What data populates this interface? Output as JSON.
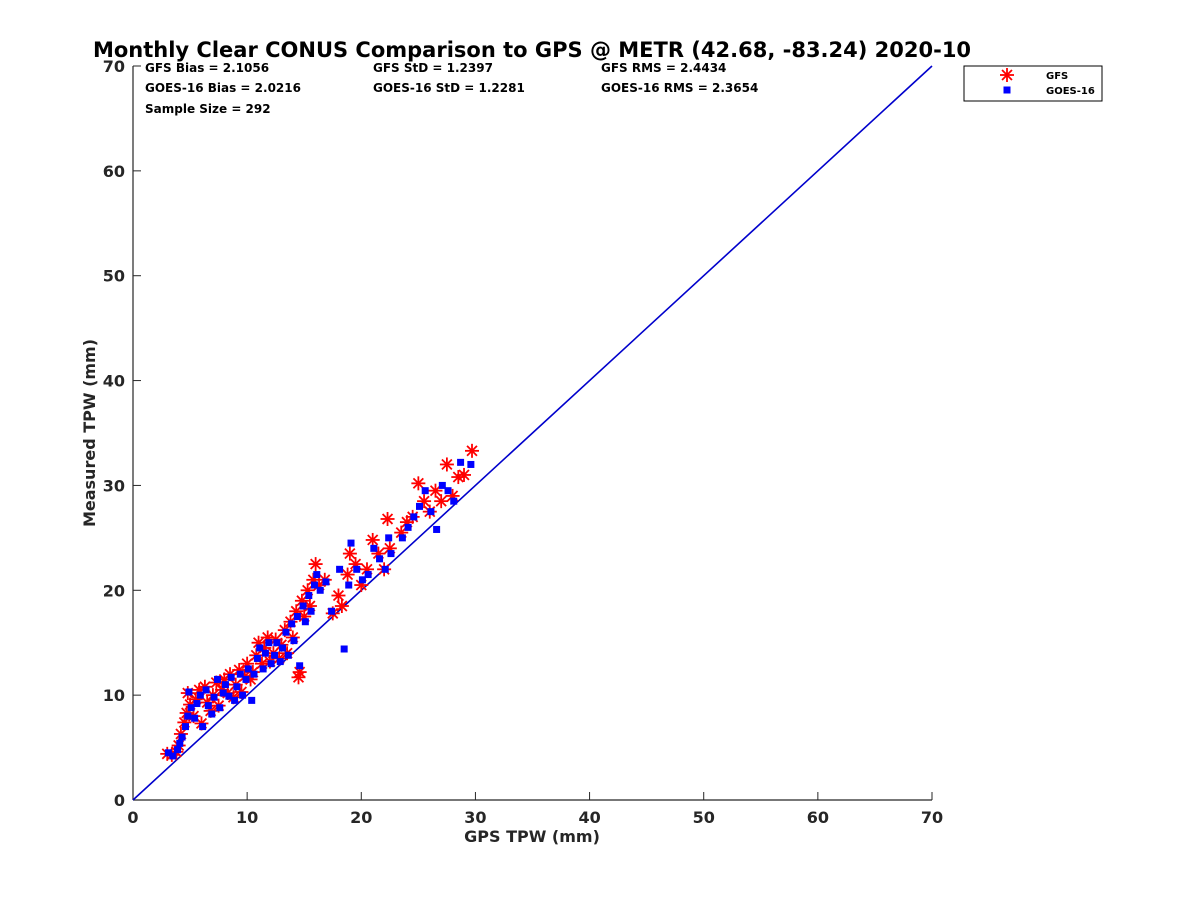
{
  "chart_data": {
    "type": "scatter",
    "title": "Monthly Clear CONUS Comparison to GPS @ METR (42.68, -83.24) 2020-10",
    "xlabel": "GPS TPW (mm)",
    "ylabel": "Measured TPW (mm)",
    "xlim": [
      0,
      70
    ],
    "ylim": [
      0,
      70
    ],
    "xticks": [
      "0",
      "10",
      "20",
      "30",
      "40",
      "50",
      "60",
      "70"
    ],
    "yticks": [
      "0",
      "10",
      "20",
      "30",
      "40",
      "50",
      "60",
      "70"
    ],
    "grid": false,
    "legend_position": "top-right",
    "stats": [
      "GFS Bias = 2.1056",
      "GFS StD = 1.2397",
      "GFS RMS = 2.4434",
      "GOES-16 Bias = 2.0216",
      "GOES-16 StD = 1.2281",
      "GOES-16 RMS = 2.3654",
      "Sample Size = 292"
    ],
    "reference_line": {
      "x": [
        0,
        70
      ],
      "y": [
        0,
        70
      ],
      "color": "#0000cc"
    },
    "series": [
      {
        "name": "GFS",
        "marker": "asterisk",
        "color": "#ff0000",
        "points": [
          [
            3.0,
            4.4
          ],
          [
            3.4,
            4.3
          ],
          [
            3.8,
            4.6
          ],
          [
            4.0,
            5.2
          ],
          [
            4.2,
            6.3
          ],
          [
            4.5,
            7.4
          ],
          [
            4.7,
            8.3
          ],
          [
            4.8,
            10.2
          ],
          [
            5.0,
            9.1
          ],
          [
            5.3,
            8.0
          ],
          [
            5.5,
            9.6
          ],
          [
            5.8,
            10.5
          ],
          [
            6.0,
            7.3
          ],
          [
            6.3,
            10.8
          ],
          [
            6.5,
            9.3
          ],
          [
            6.8,
            8.5
          ],
          [
            7.0,
            10.0
          ],
          [
            7.3,
            11.2
          ],
          [
            7.5,
            9.0
          ],
          [
            7.8,
            10.5
          ],
          [
            8.0,
            11.5
          ],
          [
            8.3,
            10.2
          ],
          [
            8.5,
            12.0
          ],
          [
            8.8,
            9.8
          ],
          [
            9.0,
            11.0
          ],
          [
            9.3,
            12.4
          ],
          [
            9.5,
            10.3
          ],
          [
            9.8,
            11.8
          ],
          [
            10.0,
            13.0
          ],
          [
            10.3,
            11.5
          ],
          [
            10.5,
            12.2
          ],
          [
            10.8,
            13.8
          ],
          [
            11.0,
            15.0
          ],
          [
            11.3,
            13.0
          ],
          [
            11.5,
            14.5
          ],
          [
            11.8,
            15.5
          ],
          [
            12.0,
            13.2
          ],
          [
            12.3,
            14.0
          ],
          [
            12.5,
            15.3
          ],
          [
            12.8,
            13.5
          ],
          [
            13.0,
            14.8
          ],
          [
            13.3,
            16.2
          ],
          [
            13.5,
            14.0
          ],
          [
            13.8,
            17.0
          ],
          [
            14.0,
            15.5
          ],
          [
            14.3,
            18.0
          ],
          [
            14.5,
            11.7
          ],
          [
            14.6,
            12.2
          ],
          [
            14.8,
            19.0
          ],
          [
            15.0,
            17.5
          ],
          [
            15.3,
            20.0
          ],
          [
            15.5,
            18.5
          ],
          [
            15.8,
            21.0
          ],
          [
            16.0,
            22.5
          ],
          [
            16.3,
            20.5
          ],
          [
            16.8,
            21.0
          ],
          [
            17.5,
            17.8
          ],
          [
            18.0,
            19.5
          ],
          [
            18.3,
            18.5
          ],
          [
            18.8,
            21.5
          ],
          [
            19.0,
            23.5
          ],
          [
            19.5,
            22.5
          ],
          [
            20.0,
            20.5
          ],
          [
            20.5,
            22.0
          ],
          [
            21.0,
            24.8
          ],
          [
            21.5,
            23.5
          ],
          [
            22.0,
            22.0
          ],
          [
            22.3,
            26.8
          ],
          [
            22.5,
            24.0
          ],
          [
            23.5,
            25.5
          ],
          [
            24.0,
            26.5
          ],
          [
            24.5,
            27.0
          ],
          [
            25.0,
            30.2
          ],
          [
            25.5,
            28.5
          ],
          [
            26.0,
            27.5
          ],
          [
            26.5,
            29.5
          ],
          [
            27.0,
            28.5
          ],
          [
            27.5,
            32.0
          ],
          [
            28.0,
            29.0
          ],
          [
            28.5,
            30.8
          ],
          [
            29.0,
            31.0
          ],
          [
            29.7,
            33.3
          ]
        ]
      },
      {
        "name": "GOES-16",
        "marker": "square",
        "color": "#0000ff",
        "points": [
          [
            3.1,
            4.5
          ],
          [
            3.5,
            4.2
          ],
          [
            3.9,
            4.8
          ],
          [
            4.1,
            5.4
          ],
          [
            4.3,
            6.0
          ],
          [
            4.6,
            7.0
          ],
          [
            4.8,
            8.0
          ],
          [
            4.9,
            10.3
          ],
          [
            5.1,
            8.8
          ],
          [
            5.4,
            7.8
          ],
          [
            5.6,
            9.2
          ],
          [
            5.9,
            10.0
          ],
          [
            6.1,
            7.0
          ],
          [
            6.4,
            10.5
          ],
          [
            6.6,
            9.0
          ],
          [
            6.9,
            8.2
          ],
          [
            7.1,
            9.8
          ],
          [
            7.4,
            11.5
          ],
          [
            7.6,
            8.8
          ],
          [
            7.9,
            10.2
          ],
          [
            8.1,
            11.0
          ],
          [
            8.4,
            9.9
          ],
          [
            8.6,
            11.7
          ],
          [
            8.9,
            9.5
          ],
          [
            9.1,
            10.8
          ],
          [
            9.4,
            12.0
          ],
          [
            9.6,
            10.0
          ],
          [
            9.9,
            11.5
          ],
          [
            10.1,
            12.5
          ],
          [
            10.4,
            9.5
          ],
          [
            10.6,
            12.0
          ],
          [
            10.9,
            13.5
          ],
          [
            11.1,
            14.5
          ],
          [
            11.4,
            12.5
          ],
          [
            11.6,
            14.0
          ],
          [
            11.9,
            15.0
          ],
          [
            12.1,
            13.0
          ],
          [
            12.4,
            13.8
          ],
          [
            12.6,
            15.0
          ],
          [
            12.9,
            13.2
          ],
          [
            13.1,
            14.5
          ],
          [
            13.4,
            16.0
          ],
          [
            13.6,
            13.8
          ],
          [
            13.9,
            16.8
          ],
          [
            14.1,
            15.2
          ],
          [
            14.4,
            17.5
          ],
          [
            14.6,
            12.8
          ],
          [
            14.9,
            18.5
          ],
          [
            15.1,
            17.0
          ],
          [
            15.4,
            19.5
          ],
          [
            15.6,
            18.0
          ],
          [
            15.9,
            20.5
          ],
          [
            16.1,
            21.5
          ],
          [
            16.4,
            20.0
          ],
          [
            16.9,
            20.8
          ],
          [
            17.4,
            18.0
          ],
          [
            18.1,
            22.0
          ],
          [
            18.5,
            14.4
          ],
          [
            18.9,
            20.5
          ],
          [
            19.1,
            24.5
          ],
          [
            19.6,
            22.0
          ],
          [
            20.1,
            21.0
          ],
          [
            20.6,
            21.5
          ],
          [
            21.1,
            24.0
          ],
          [
            21.6,
            23.0
          ],
          [
            22.1,
            22.0
          ],
          [
            22.4,
            25.0
          ],
          [
            22.6,
            23.5
          ],
          [
            23.6,
            25.0
          ],
          [
            24.1,
            26.0
          ],
          [
            24.6,
            27.0
          ],
          [
            25.1,
            28.0
          ],
          [
            25.6,
            29.5
          ],
          [
            26.1,
            27.5
          ],
          [
            26.6,
            25.8
          ],
          [
            27.1,
            30.0
          ],
          [
            27.6,
            29.5
          ],
          [
            28.1,
            28.5
          ],
          [
            28.7,
            32.2
          ],
          [
            29.6,
            32.0
          ]
        ]
      }
    ]
  }
}
